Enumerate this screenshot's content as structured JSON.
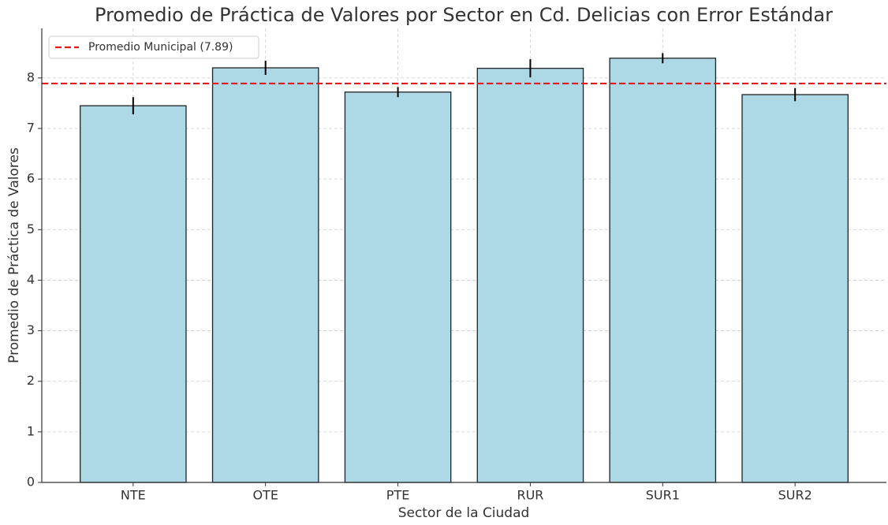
{
  "chart_data": {
    "type": "bar",
    "title": "Promedio de Práctica de Valores por Sector en Cd. Delicias con Error Estándar",
    "xlabel": "Sector de la Ciudad",
    "ylabel": "Promedio de Práctica de Valores",
    "categories": [
      "NTE",
      "OTE",
      "PTE",
      "RUR",
      "SUR1",
      "SUR2"
    ],
    "values": [
      7.45,
      8.2,
      7.72,
      8.19,
      8.39,
      7.67
    ],
    "errors": [
      0.17,
      0.14,
      0.1,
      0.18,
      0.1,
      0.13
    ],
    "color": "#add8e6",
    "edgecolor": "#222222",
    "reference_line": {
      "value": 7.89,
      "label": "Promedio Municipal (7.89)",
      "color": "#e31a1c"
    },
    "ylim": [
      0,
      8.98
    ],
    "yticks": [
      0,
      1,
      2,
      3,
      4,
      5,
      6,
      7,
      8
    ],
    "grid": true,
    "legend": "upper left"
  }
}
